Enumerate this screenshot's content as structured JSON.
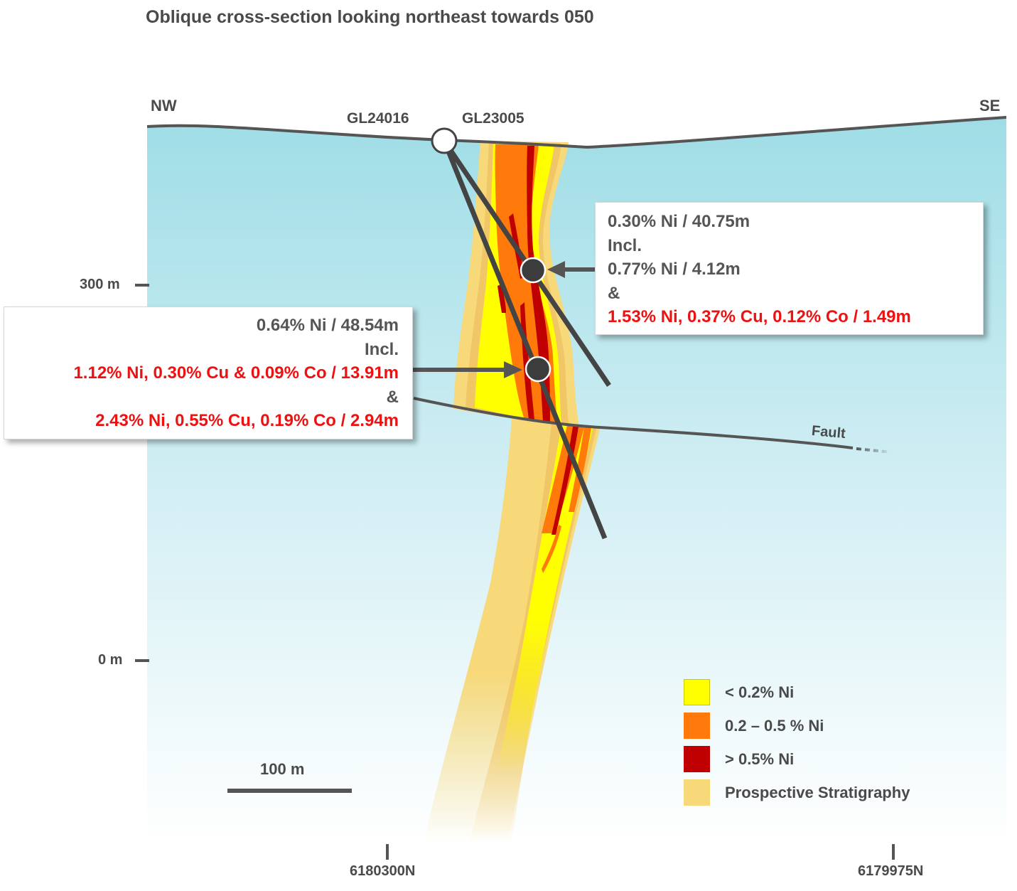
{
  "title": "Oblique cross-section looking northeast towards 050",
  "directions": {
    "left": "NW",
    "right": "SE"
  },
  "drillholes": [
    {
      "name": "GL24016"
    },
    {
      "name": "GL23005"
    }
  ],
  "elevations": [
    {
      "label": "300 m"
    },
    {
      "label": "0 m"
    }
  ],
  "northings": [
    {
      "label": "6180300N"
    },
    {
      "label": "6179975N"
    }
  ],
  "fault_label": "Fault",
  "scale_bar": {
    "label": "100 m"
  },
  "intercepts": {
    "upper": {
      "line1": "0.30% Ni / 40.75m",
      "line2": "Incl.",
      "line3": "0.77% Ni / 4.12m",
      "line4": "&",
      "line5": "1.53% Ni, 0.37% Cu, 0.12% Co / 1.49m"
    },
    "lower": {
      "line1": "0.64% Ni / 48.54m",
      "line2": "Incl.",
      "line3": "1.12% Ni, 0.30% Cu & 0.09% Co / 13.91m",
      "line4": "&",
      "line5": "2.43% Ni, 0.55% Cu, 0.19% Co / 2.94m"
    }
  },
  "legend": [
    {
      "label": "< 0.2% Ni",
      "color": "#ffff00"
    },
    {
      "label": "0.2 – 0.5 % Ni",
      "color": "#ff7a0a"
    },
    {
      "label": "> 0.5% Ni",
      "color": "#c00000"
    },
    {
      "label": "Prospective Stratigraphy",
      "color": "#f7d97a"
    }
  ],
  "colors": {
    "ground": "#9fdde6",
    "surface_line": "#555555",
    "callout_red": "#ee1111",
    "drill_trace": "#444444"
  }
}
